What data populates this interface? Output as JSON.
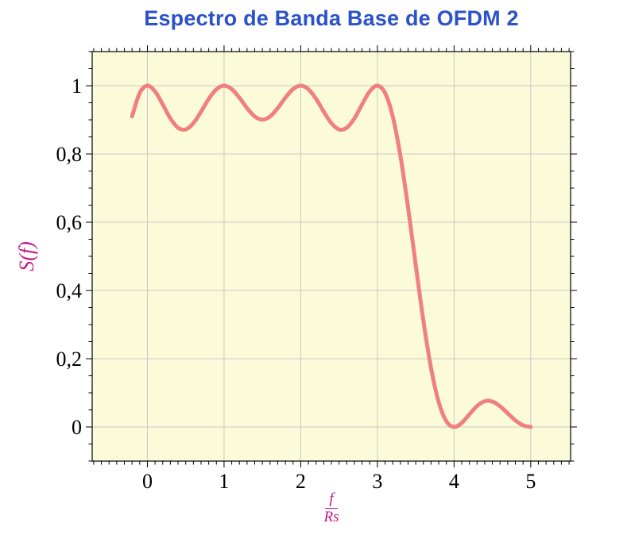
{
  "title": "Espectro de Banda Base de OFDM 2",
  "labels": {
    "ylabel": "S(f)",
    "xlabel_numerator": "f",
    "xlabel_denominator": "Rs"
  },
  "colors": {
    "title": "#2b52c8",
    "axis_labels": "#c71585",
    "curve": "#f08080",
    "plot_background": "#fbfbda",
    "grid": "#c8c8c8",
    "axis": "#000000",
    "tick_labels": "#000000"
  },
  "chart_data": {
    "type": "line",
    "title": "Espectro de Banda Base de OFDM 2",
    "xlabel": "f/Rs",
    "ylabel": "S(f)",
    "xlim": [
      -0.72,
      5.52
    ],
    "ylim": [
      -0.1,
      1.1
    ],
    "xticks": [
      0,
      1,
      2,
      3,
      4,
      5
    ],
    "xticklabels": [
      "0",
      "1",
      "2",
      "3",
      "4",
      "5"
    ],
    "yticks": [
      0,
      0.2,
      0.4,
      0.6,
      0.8,
      1
    ],
    "yticklabels": [
      "0",
      "0,2",
      "0,4",
      "0,6",
      "0,8",
      "1"
    ],
    "x_minor_step": 0.1,
    "y_minor_step": 0.05,
    "grid": "major",
    "legend": false,
    "series": [
      {
        "name": "S(f)",
        "x": [
          -0.2,
          -0.1,
          0,
          0.1,
          0.2,
          0.3,
          0.4,
          0.5,
          0.6,
          0.7,
          0.8,
          0.9,
          1,
          1.1,
          1.2,
          1.3,
          1.4,
          1.5,
          1.6,
          1.7,
          1.8,
          1.9,
          2,
          2.1,
          2.2,
          2.3,
          2.4,
          2.5,
          2.6,
          2.7,
          2.8,
          2.9,
          3,
          3.1,
          3.2,
          3.3,
          3.4,
          3.5,
          3.6,
          3.7,
          3.8,
          3.9,
          4,
          4.1,
          4.2,
          4.3,
          4.4,
          4.5,
          4.6,
          4.7,
          4.8,
          4.9,
          5
        ],
        "y": [
          0.9101,
          0.9787,
          1,
          0.9833,
          0.9451,
          0.9042,
          0.8767,
          0.8718,
          0.89,
          0.924,
          0.9614,
          0.9896,
          1,
          0.9901,
          0.965,
          0.9344,
          0.9099,
          0.9006,
          0.9099,
          0.9344,
          0.965,
          0.9901,
          1,
          0.9896,
          0.9614,
          0.924,
          0.89,
          0.8718,
          0.8767,
          0.9042,
          0.9451,
          0.9833,
          1,
          0.9787,
          0.9101,
          0.7947,
          0.6434,
          0.4748,
          0.311,
          0.1722,
          0.0724,
          0.0164,
          0,
          0.0118,
          0.0369,
          0.0615,
          0.0753,
          0.0745,
          0.0608,
          0.0399,
          0.0192,
          0.0049,
          0
        ]
      }
    ]
  }
}
